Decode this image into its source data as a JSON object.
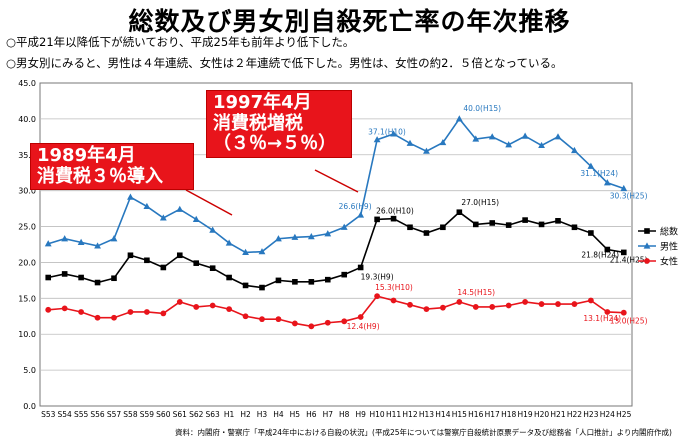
{
  "header": {
    "title": "総数及び男女別自殺死亡率の年次推移",
    "bullet1": "○平成21年以降低下が続いており、平成25年も前年より低下した。",
    "bullet2": "○男女別にみると、男性は４年連続、女性は２年連続で低下した。男性は、女性の約2．５倍となっている。"
  },
  "callouts": {
    "c1_line1": "1989年4月",
    "c1_line2": "消費税３％導入",
    "c2_line1": "1997年4月",
    "c2_line2": "消費税増税",
    "c2_line3": "（３％→５％）"
  },
  "source": "資料：内閣府・警察庁「平成24年中における自殺の状況」(平成25年については警察庁自殺統計原票データ及び総務省「人口推計」より内閣府作成)",
  "chart_data": {
    "type": "line",
    "categories": [
      "S53",
      "S54",
      "S55",
      "S56",
      "S57",
      "S58",
      "S59",
      "S60",
      "S61",
      "S62",
      "S63",
      "H1",
      "H2",
      "H3",
      "H4",
      "H5",
      "H6",
      "H7",
      "H8",
      "H9",
      "H10",
      "H11",
      "H12",
      "H13",
      "H14",
      "H15",
      "H16",
      "H17",
      "H18",
      "H19",
      "H20",
      "H21",
      "H22",
      "H23",
      "H24",
      "H25"
    ],
    "ylim": [
      0,
      45
    ],
    "yticks": [
      "0.0",
      "5.0",
      "10.0",
      "15.0",
      "20.0",
      "25.0",
      "30.0",
      "35.0",
      "40.0",
      "45.0"
    ],
    "grid": true,
    "legend_position": "right",
    "series": [
      {
        "name": "総数",
        "color": "#000000",
        "marker": "square",
        "values": [
          17.9,
          18.4,
          17.9,
          17.2,
          17.8,
          21.0,
          20.3,
          19.3,
          21.0,
          19.9,
          19.2,
          17.9,
          16.8,
          16.5,
          17.5,
          17.3,
          17.3,
          17.6,
          18.3,
          19.3,
          26.0,
          26.1,
          24.9,
          24.1,
          24.9,
          27.0,
          25.3,
          25.5,
          25.2,
          25.9,
          25.3,
          25.8,
          24.9,
          24.1,
          21.8,
          21.4
        ]
      },
      {
        "name": "男性",
        "color": "#2878bf",
        "marker": "triangle",
        "values": [
          22.6,
          23.3,
          22.8,
          22.3,
          23.3,
          29.1,
          27.8,
          26.2,
          27.4,
          26.0,
          24.5,
          22.7,
          21.4,
          21.5,
          23.3,
          23.5,
          23.6,
          24.0,
          24.9,
          26.6,
          37.1,
          37.9,
          36.6,
          35.5,
          36.7,
          40.0,
          37.2,
          37.5,
          36.4,
          37.6,
          36.3,
          37.5,
          35.6,
          33.4,
          31.1,
          30.3
        ]
      },
      {
        "name": "女性",
        "color": "#e8141b",
        "marker": "circle",
        "values": [
          13.4,
          13.6,
          13.1,
          12.3,
          12.3,
          13.1,
          13.1,
          12.9,
          14.5,
          13.8,
          14.0,
          13.5,
          12.5,
          12.1,
          12.1,
          11.5,
          11.1,
          11.6,
          11.8,
          12.4,
          15.3,
          14.7,
          14.1,
          13.5,
          13.7,
          14.5,
          13.8,
          13.8,
          14.0,
          14.5,
          14.2,
          14.2,
          14.2,
          14.7,
          13.1,
          13.0
        ]
      }
    ],
    "annotations": [
      {
        "series": "男性",
        "category": "H9",
        "label": "26.6(H9)"
      },
      {
        "series": "男性",
        "category": "H10",
        "label": "37.1(H10)"
      },
      {
        "series": "男性",
        "category": "H15",
        "label": "40.0(H15)"
      },
      {
        "series": "男性",
        "category": "H24",
        "label": "31.1(H24)"
      },
      {
        "series": "男性",
        "category": "H25",
        "label": "30.3(H25)"
      },
      {
        "series": "総数",
        "category": "H9",
        "label": "19.3(H9)"
      },
      {
        "series": "総数",
        "category": "H10",
        "label": "26.0(H10)"
      },
      {
        "series": "総数",
        "category": "H15",
        "label": "27.0(H15)"
      },
      {
        "series": "総数",
        "category": "H24",
        "label": "21.8(H24)"
      },
      {
        "series": "総数",
        "category": "H25",
        "label": "21.4(H25)"
      },
      {
        "series": "女性",
        "category": "H9",
        "label": "12.4(H9)"
      },
      {
        "series": "女性",
        "category": "H10",
        "label": "15.3(H10)"
      },
      {
        "series": "女性",
        "category": "H15",
        "label": "14.5(H15)"
      },
      {
        "series": "女性",
        "category": "H24",
        "label": "13.1(H24)"
      },
      {
        "series": "女性",
        "category": "H25",
        "label": "13.0(H25)"
      }
    ]
  }
}
